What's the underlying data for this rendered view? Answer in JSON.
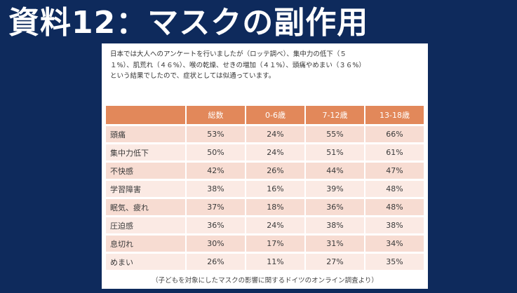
{
  "title": "資料12：マスクの副作用",
  "intro": {
    "line1": "日本では大人へのアンケートを行いましたが（ロッテ調べ）、集中力の低下（５",
    "line2": "１%）、肌荒れ（４６%）、喉の乾燥、せきの増加（４１%）、頭痛やめまい（３６%）",
    "line3": "という結果でしたので、症状としては似通っています。"
  },
  "table": {
    "headers": [
      "",
      "総数",
      "0-6歳",
      "7-12歳",
      "13-18歳"
    ],
    "rows": [
      [
        "頭痛",
        "53%",
        "24%",
        "55%",
        "66%"
      ],
      [
        "集中力低下",
        "50%",
        "24%",
        "51%",
        "61%"
      ],
      [
        "不快感",
        "42%",
        "26%",
        "44%",
        "47%"
      ],
      [
        "学習障害",
        "38%",
        "16%",
        "39%",
        "48%"
      ],
      [
        "眠気、疲れ",
        "37%",
        "18%",
        "36%",
        "48%"
      ],
      [
        "圧迫感",
        "36%",
        "24%",
        "38%",
        "38%"
      ],
      [
        "息切れ",
        "30%",
        "17%",
        "31%",
        "34%"
      ],
      [
        "めまい",
        "26%",
        "11%",
        "27%",
        "35%"
      ]
    ]
  },
  "source": "（子どもを対象にしたマスクの影響に関するドイツのオンライン調査より）"
}
